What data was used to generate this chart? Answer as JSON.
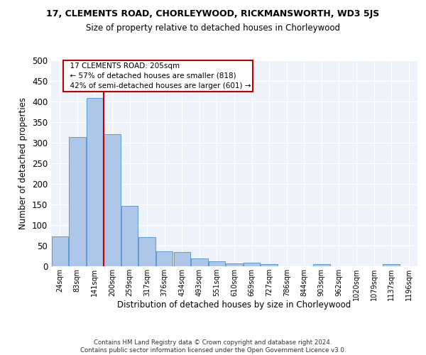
{
  "title": "17, CLEMENTS ROAD, CHORLEYWOOD, RICKMANSWORTH, WD3 5JS",
  "subtitle": "Size of property relative to detached houses in Chorleywood",
  "xlabel": "Distribution of detached houses by size in Chorleywood",
  "ylabel": "Number of detached properties",
  "footer_line1": "Contains HM Land Registry data © Crown copyright and database right 2024.",
  "footer_line2": "Contains public sector information licensed under the Open Government Licence v3.0.",
  "bar_labels": [
    "24sqm",
    "83sqm",
    "141sqm",
    "200sqm",
    "259sqm",
    "317sqm",
    "376sqm",
    "434sqm",
    "493sqm",
    "551sqm",
    "610sqm",
    "669sqm",
    "727sqm",
    "786sqm",
    "844sqm",
    "903sqm",
    "962sqm",
    "1020sqm",
    "1079sqm",
    "1137sqm",
    "1196sqm"
  ],
  "bar_values": [
    73,
    313,
    408,
    320,
    146,
    70,
    36,
    35,
    19,
    12,
    7,
    8,
    5,
    0,
    0,
    5,
    0,
    0,
    0,
    5,
    0
  ],
  "bar_color": "#aec6e8",
  "bar_edge_color": "#5b9bd5",
  "property_line_color": "#c00000",
  "annotation_line1": "17 CLEMENTS ROAD: 205sqm",
  "annotation_line2": "← 57% of detached houses are smaller (818)",
  "annotation_line3": "42% of semi-detached houses are larger (601) →",
  "annotation_box_color": "#ffffff",
  "annotation_box_edge_color": "#c00000",
  "ylim": [
    0,
    500
  ],
  "yticks": [
    0,
    50,
    100,
    150,
    200,
    250,
    300,
    350,
    400,
    450,
    500
  ],
  "background_color": "#eef2fa"
}
